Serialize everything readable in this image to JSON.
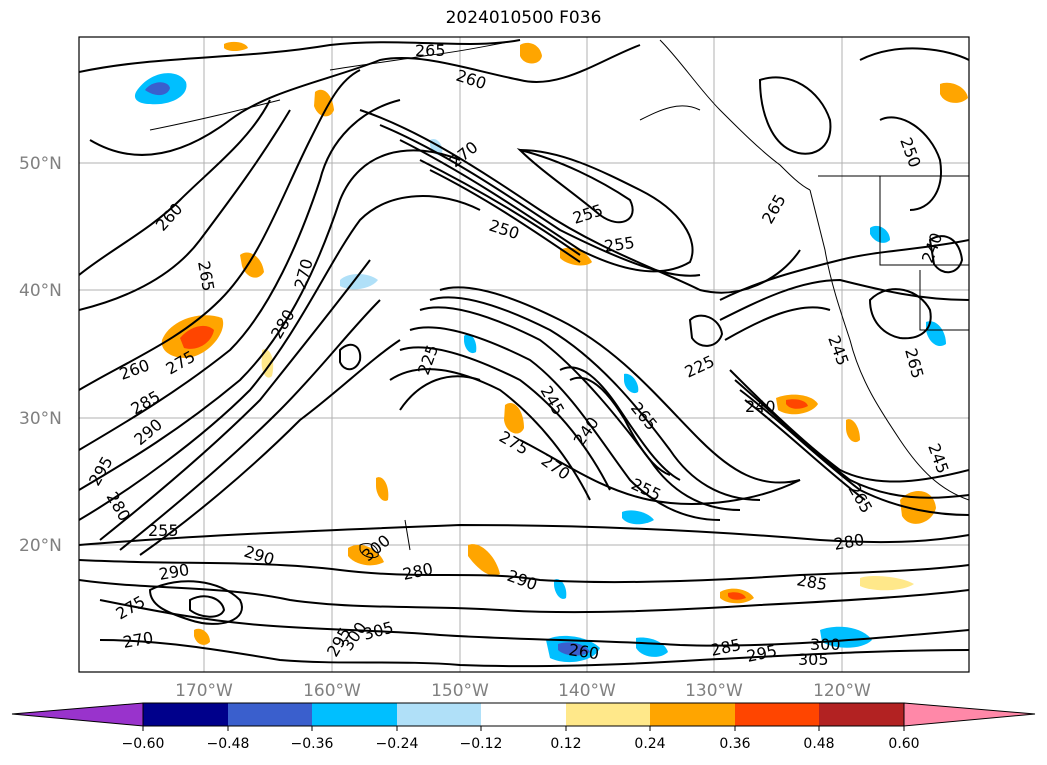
{
  "title": "2024010500 F036",
  "map": {
    "lat_labels": [
      "50°N",
      "40°N",
      "30°N",
      "20°N"
    ],
    "lon_labels": [
      "170°W",
      "160°W",
      "150°W",
      "140°W",
      "130°W",
      "120°W"
    ],
    "contour_labels": [
      "265",
      "260",
      "270",
      "255",
      "250",
      "255",
      "260",
      "265",
      "265",
      "270",
      "260",
      "275",
      "280",
      "285",
      "290",
      "295",
      "280",
      "255",
      "245",
      "240",
      "265",
      "255",
      "275",
      "270",
      "225",
      "240",
      "245",
      "265",
      "245",
      "280",
      "290",
      "290",
      "280",
      "275",
      "270",
      "290",
      "285",
      "295",
      "300",
      "305",
      "305",
      "295",
      "300",
      "285",
      "300",
      "260",
      "225",
      "250",
      "240",
      "265"
    ]
  },
  "colorbar": {
    "tick_labels": [
      "−0.60",
      "−0.48",
      "−0.36",
      "−0.24",
      "−0.12",
      "0.12",
      "0.24",
      "0.36",
      "0.48",
      "0.60"
    ],
    "colors": [
      "#9933cc",
      "#00008b",
      "#3a5fcd",
      "#00bfff",
      "#b0e0f8",
      "#ffffff",
      "#ffe88a",
      "#ffa500",
      "#ff4500",
      "#b22222",
      "#ff88a8"
    ]
  }
}
